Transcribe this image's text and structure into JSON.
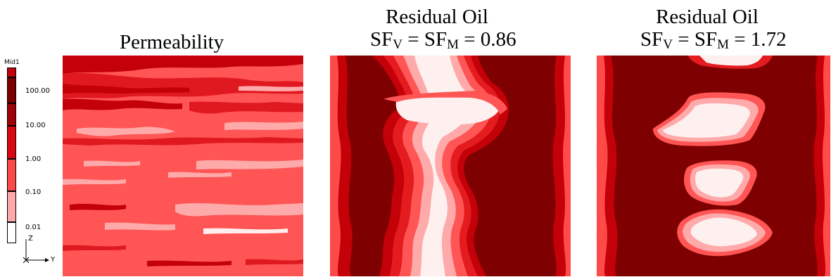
{
  "titles": {
    "permeability": "Permeability",
    "residual_1_line1": "Residual Oil",
    "residual_1_sf_v": "SF",
    "residual_1_sub_v": "V",
    "residual_1_eq": " = SF",
    "residual_1_sub_m": "M",
    "residual_1_value": " = 0.86",
    "residual_2_line1": "Residual Oil",
    "residual_2_sf_v": "SF",
    "residual_2_sub_v": "V",
    "residual_2_eq": " = SF",
    "residual_2_sub_m": "M",
    "residual_2_value": " = 1.72"
  },
  "legend": {
    "title": "Mid1",
    "ticks": [
      "100.00",
      "10.00",
      "1.00",
      "0.10",
      "0.01"
    ],
    "swatch_colors": [
      "#c0000a",
      "#7a0000",
      "#c80000",
      "#e41b1f",
      "#ff4a4a",
      "#ffaaaa",
      "#ffffff"
    ],
    "axis_z": "Z",
    "axis_y": "Y"
  },
  "colors": {
    "dark": "#7e0000",
    "mid": "#c40008",
    "red": "#e02025",
    "pink": "#ff5555",
    "light": "#ffaaaa",
    "white": "#fff0f0"
  }
}
